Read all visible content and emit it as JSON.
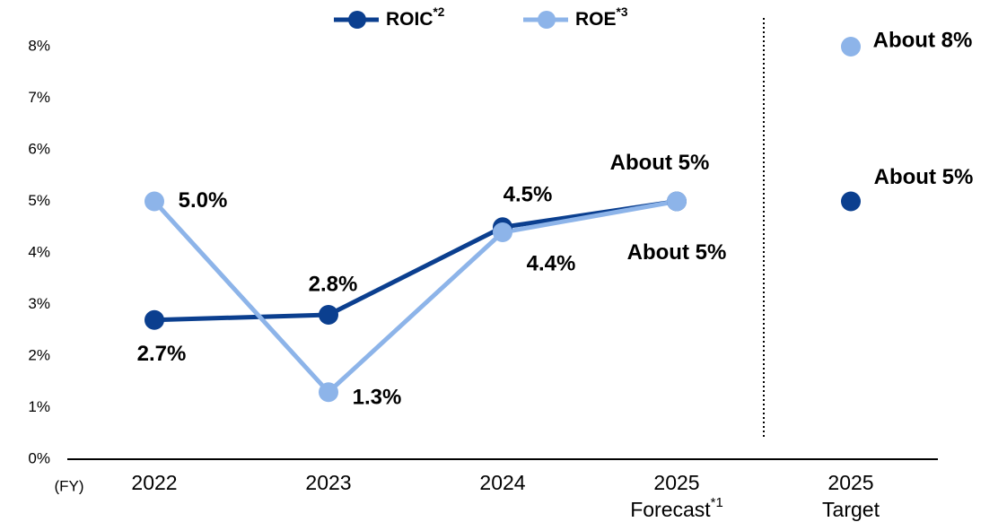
{
  "chart_data": {
    "type": "line",
    "categories": [
      "2022",
      "2023",
      "2024",
      [
        "2025",
        "Forecast*1"
      ],
      [
        "2025",
        "Target"
      ]
    ],
    "x_label": "(FY)",
    "series": [
      {
        "name": "ROIC*2",
        "color": "#0b3f8f",
        "values": [
          2.7,
          2.8,
          4.5,
          5,
          5
        ],
        "value_labels": [
          "2.7%",
          "2.8%",
          "4.5%",
          "About 5%",
          "About 5%"
        ]
      },
      {
        "name": "ROE*3",
        "color": "#8db4e9",
        "values": [
          5.0,
          1.3,
          4.4,
          5,
          8
        ],
        "value_labels": [
          "5.0%",
          "1.3%",
          "4.4%",
          "About 5%",
          "About 8%"
        ]
      }
    ],
    "ylim": [
      0,
      8
    ],
    "yticks": [
      {
        "value": 0,
        "label": "0%"
      },
      {
        "value": 1,
        "label": "1%"
      },
      {
        "value": 2,
        "label": "2%"
      },
      {
        "value": 3,
        "label": "3%"
      },
      {
        "value": 4,
        "label": "4%"
      },
      {
        "value": 5,
        "label": "5%"
      },
      {
        "value": 6,
        "label": "6%"
      },
      {
        "value": 7,
        "label": "7%"
      },
      {
        "value": 8,
        "label": "8%"
      }
    ],
    "grid": false,
    "divider": true,
    "legend": "top"
  }
}
